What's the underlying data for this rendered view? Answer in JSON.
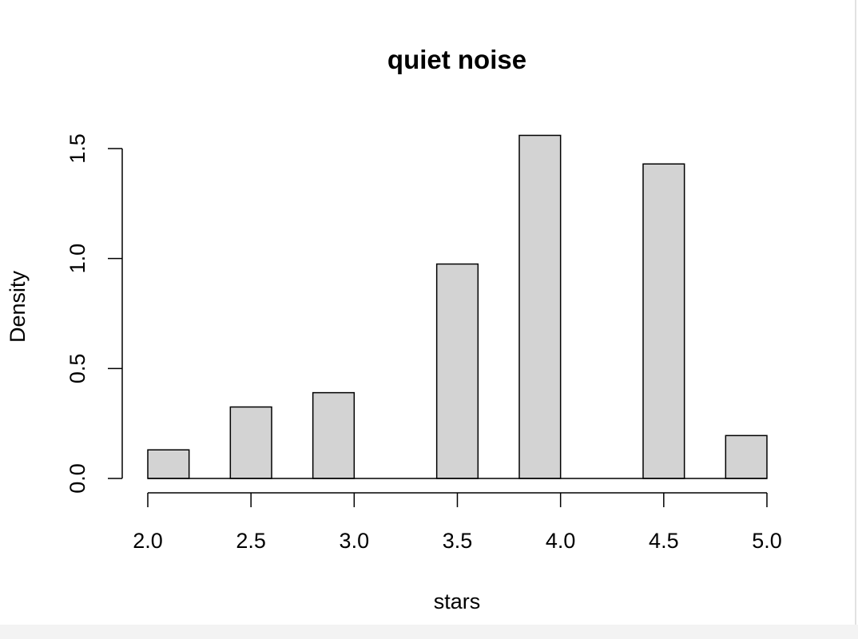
{
  "chart_data": {
    "type": "bar",
    "histogram": true,
    "title": "quiet noise",
    "xlabel": "stars",
    "ylabel": "Density",
    "bins": [
      {
        "start": 2.0,
        "end": 2.2,
        "density": 0.13
      },
      {
        "start": 2.2,
        "end": 2.4,
        "density": 0.0
      },
      {
        "start": 2.4,
        "end": 2.6,
        "density": 0.325
      },
      {
        "start": 2.6,
        "end": 2.8,
        "density": 0.0
      },
      {
        "start": 2.8,
        "end": 3.0,
        "density": 0.39
      },
      {
        "start": 3.0,
        "end": 3.2,
        "density": 0.0
      },
      {
        "start": 3.2,
        "end": 3.4,
        "density": 0.0
      },
      {
        "start": 3.4,
        "end": 3.6,
        "density": 0.975
      },
      {
        "start": 3.6,
        "end": 3.8,
        "density": 0.0
      },
      {
        "start": 3.8,
        "end": 4.0,
        "density": 1.56
      },
      {
        "start": 4.0,
        "end": 4.2,
        "density": 0.0
      },
      {
        "start": 4.2,
        "end": 4.4,
        "density": 0.0
      },
      {
        "start": 4.4,
        "end": 4.6,
        "density": 1.43
      },
      {
        "start": 4.6,
        "end": 4.8,
        "density": 0.0
      },
      {
        "start": 4.8,
        "end": 5.0,
        "density": 0.195
      }
    ],
    "xlim": [
      2.0,
      5.0
    ],
    "ylim": [
      0.0,
      1.5
    ],
    "x_ticks": [
      {
        "value": 2.0,
        "label": "2.0"
      },
      {
        "value": 2.5,
        "label": "2.5"
      },
      {
        "value": 3.0,
        "label": "3.0"
      },
      {
        "value": 3.5,
        "label": "3.5"
      },
      {
        "value": 4.0,
        "label": "4.0"
      },
      {
        "value": 4.5,
        "label": "4.5"
      },
      {
        "value": 5.0,
        "label": "5.0"
      }
    ],
    "y_ticks": [
      {
        "value": 0.0,
        "label": "0.0"
      },
      {
        "value": 0.5,
        "label": "0.5"
      },
      {
        "value": 1.0,
        "label": "1.0"
      },
      {
        "value": 1.5,
        "label": "1.5"
      }
    ],
    "grid": false,
    "bar_fill": "#d3d3d3",
    "bar_stroke": "#000000"
  }
}
